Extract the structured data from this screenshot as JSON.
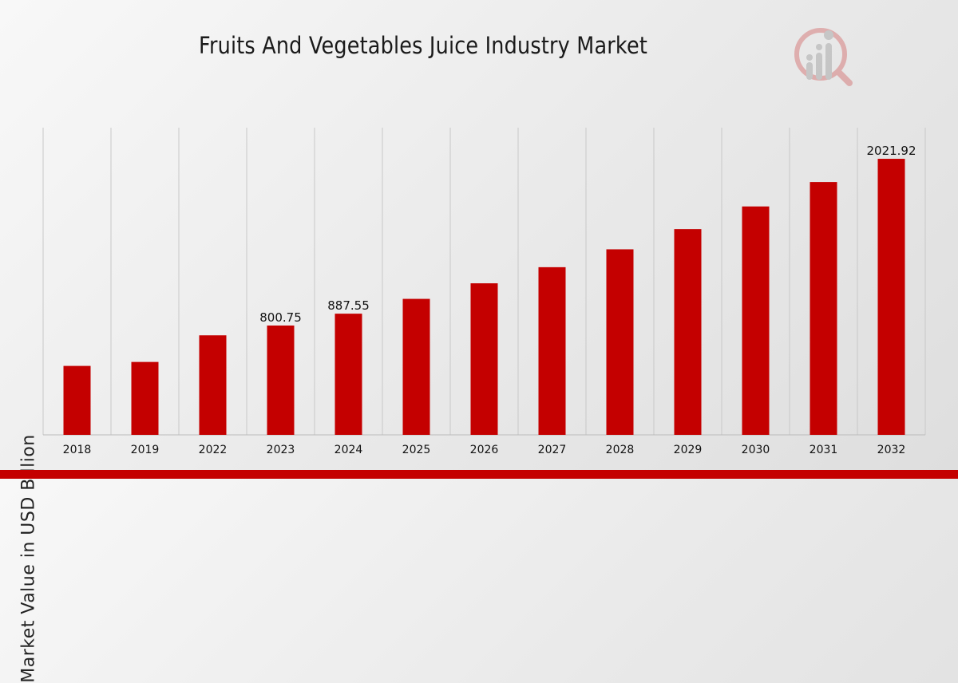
{
  "chart_data": {
    "type": "bar",
    "title": "Fruits And Vegetables Juice Industry Market",
    "xlabel": "",
    "ylabel": "Market Value in USD Billion",
    "categories": [
      "2018",
      "2019",
      "2022",
      "2023",
      "2024",
      "2025",
      "2026",
      "2027",
      "2028",
      "2029",
      "2030",
      "2031",
      "2032"
    ],
    "values": [
      505,
      534,
      729,
      800.75,
      887.55,
      996,
      1110,
      1228,
      1359,
      1507,
      1673,
      1852,
      2021.92
    ],
    "data_labels": [
      {
        "category": "2023",
        "text": "800.75"
      },
      {
        "category": "2024",
        "text": "887.55"
      },
      {
        "category": "2032",
        "text": "2021.92"
      }
    ],
    "ylim": [
      0,
      2250
    ],
    "grid": "vertical",
    "bar_color": "#c40000",
    "grid_color": "#c8c8c8"
  },
  "brand": {
    "accent": "#c40000",
    "logo_icon": "market-research-logo-icon"
  }
}
